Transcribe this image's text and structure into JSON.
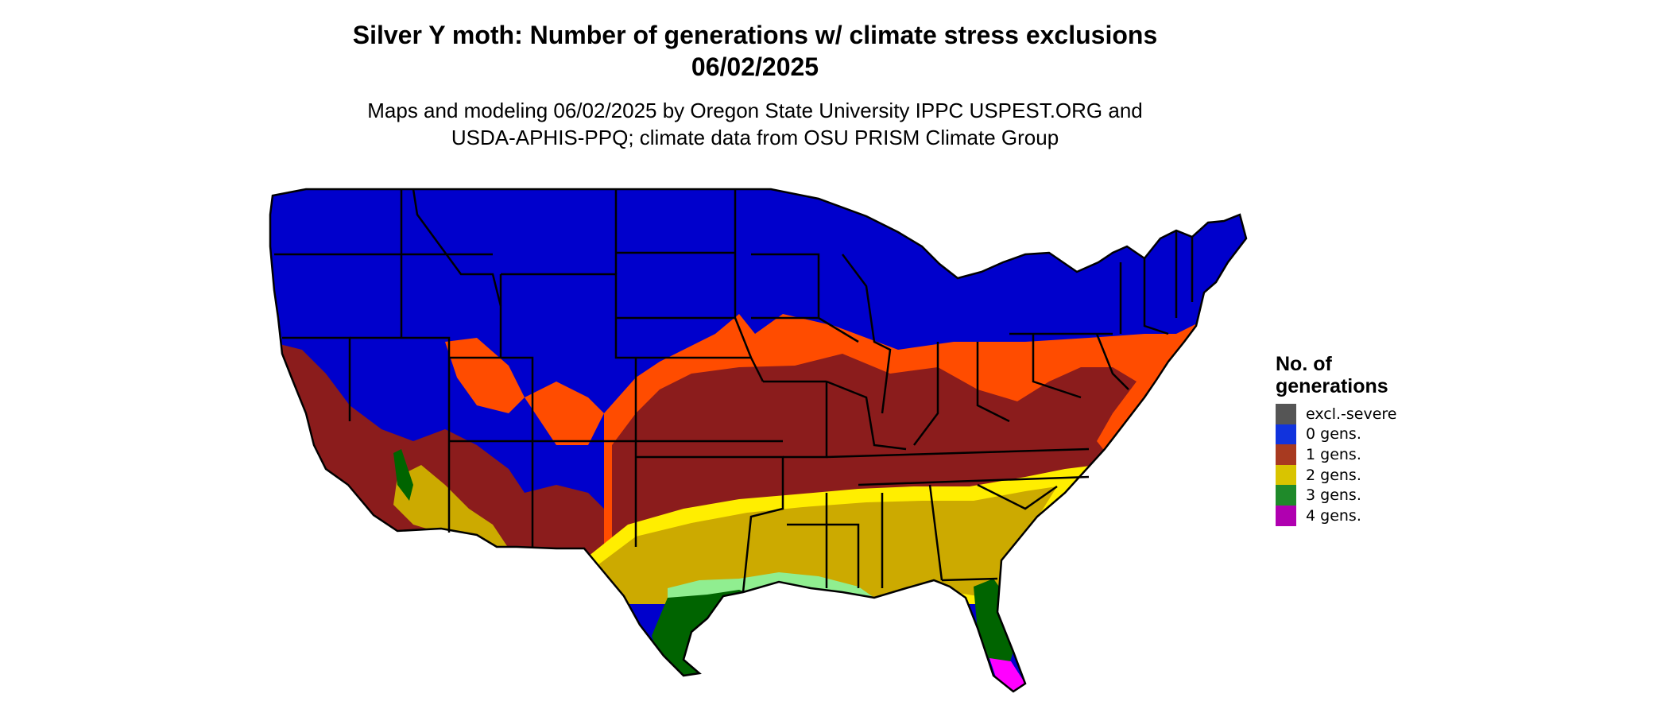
{
  "title": {
    "line1": "Silver Y moth: Number of generations w/ climate stress exclusions",
    "line2": "06/02/2025"
  },
  "subtitle": {
    "line1": "Maps and modeling 06/02/2025 by Oregon State University IPPC USPEST.ORG and",
    "line2": "USDA-APHIS-PPQ; climate data from OSU PRISM Climate Group"
  },
  "legend": {
    "title_line1": "No. of",
    "title_line2": "generations",
    "items": [
      {
        "label": "excl.-severe",
        "color": "#555555"
      },
      {
        "label": "0 gens.",
        "color": "#1133dd"
      },
      {
        "label": "1 gens.",
        "color": "#a83a20"
      },
      {
        "label": "2 gens.",
        "color": "#d9c400"
      },
      {
        "label": "3 gens.",
        "color": "#1f8a2a"
      },
      {
        "label": "4 gens.",
        "color": "#b000b0"
      }
    ]
  },
  "map_colors": {
    "zero": "#0000cc",
    "one_dark": "#8b1c1c",
    "one_orange": "#ff4c00",
    "two": "#ccaa00",
    "two_light": "#ffee00",
    "three": "#006400",
    "three_light": "#90ee90",
    "four": "#ff00ff",
    "border": "#000000"
  }
}
